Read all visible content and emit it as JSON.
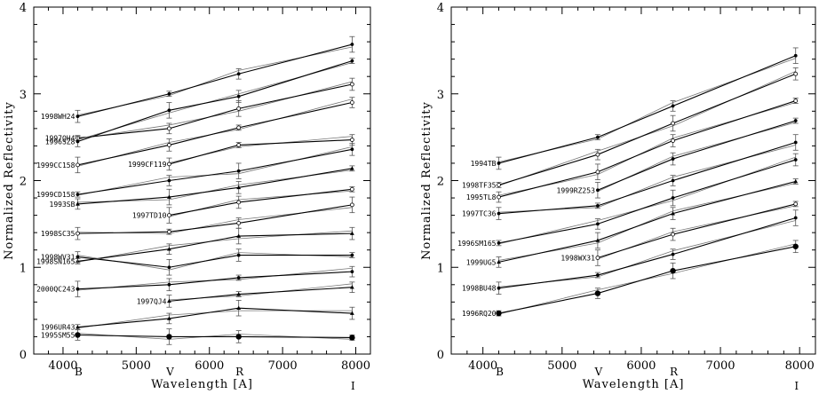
{
  "chart_data": [
    {
      "type": "line",
      "xlabel": "Wavelength [A]",
      "ylabel": "Normalized Reflectivity",
      "xlim": [
        3600,
        8200
      ],
      "ylim": [
        0,
        4
      ],
      "xticks": [
        4000,
        5000,
        6000,
        7000,
        8000
      ],
      "yticks": [
        0,
        1,
        2,
        3,
        4
      ],
      "bands": [
        {
          "label": "B",
          "x": 4200
        },
        {
          "label": "V",
          "x": 5450
        },
        {
          "label": "R",
          "x": 6400
        },
        {
          "label": "I",
          "x": 7950
        }
      ],
      "series": [
        {
          "name": "1998WH24",
          "marker": "dot",
          "x": [
            4200,
            5450,
            6400,
            7950
          ],
          "y": [
            2.74,
            3.0,
            3.23,
            3.57
          ]
        },
        {
          "name": "1997QH4",
          "marker": "open",
          "x": [
            4200,
            5450,
            6400,
            7950
          ],
          "y": [
            2.49,
            2.6,
            2.83,
            3.11
          ]
        },
        {
          "name": "1996SZ8",
          "marker": "dot",
          "x": [
            4200,
            5450,
            6400,
            7950
          ],
          "y": [
            2.45,
            2.81,
            2.97,
            3.38
          ]
        },
        {
          "name": "1999CC158",
          "marker": "open",
          "x": [
            4200,
            5450,
            6400,
            7950
          ],
          "y": [
            2.18,
            2.41,
            2.61,
            2.9
          ]
        },
        {
          "name": "1999CF119",
          "marker": "open",
          "x": [
            5450,
            6400,
            7950
          ],
          "y": [
            2.19,
            2.41,
            2.47
          ]
        },
        {
          "name": "1999CD158",
          "marker": "dot",
          "x": [
            4200,
            5450,
            6400,
            7950
          ],
          "y": [
            1.84,
            2.0,
            2.11,
            2.36
          ]
        },
        {
          "name": "1993SB",
          "marker": "tri",
          "x": [
            4200,
            5450,
            6400,
            7950
          ],
          "y": [
            1.73,
            1.81,
            1.92,
            2.14
          ]
        },
        {
          "name": "1997TD10",
          "marker": "open",
          "x": [
            5450,
            6400,
            7950
          ],
          "y": [
            1.6,
            1.75,
            1.9
          ]
        },
        {
          "name": "1998SC35",
          "marker": "open",
          "x": [
            4200,
            5450,
            6400,
            7950
          ],
          "y": [
            1.39,
            1.41,
            1.51,
            1.72
          ]
        },
        {
          "name": "1998SN165",
          "marker": "tri",
          "x": [
            4200,
            5450,
            6400,
            7950
          ],
          "y": [
            1.07,
            1.21,
            1.36,
            1.39
          ]
        },
        {
          "name": "1998WV31",
          "marker": "dot",
          "x": [
            4200,
            5450,
            6400,
            7950
          ],
          "y": [
            1.12,
            1.0,
            1.14,
            1.14
          ]
        },
        {
          "name": "2000QC243",
          "marker": "dot",
          "x": [
            4200,
            5450,
            6400,
            7950
          ],
          "y": [
            0.75,
            0.8,
            0.88,
            0.95
          ]
        },
        {
          "name": "1997QJ4",
          "marker": "tri",
          "x": [
            5450,
            6400,
            7950
          ],
          "y": [
            0.61,
            0.69,
            0.77
          ]
        },
        {
          "name": "1996UR43",
          "marker": "tri",
          "x": [
            4200,
            5450,
            6400,
            7950
          ],
          "y": [
            0.31,
            0.41,
            0.53,
            0.47
          ]
        },
        {
          "name": "1995SM55",
          "marker": "bigdot",
          "x": [
            4200,
            5450,
            6400,
            7950
          ],
          "y": [
            0.22,
            0.2,
            0.2,
            0.19
          ]
        }
      ]
    },
    {
      "type": "line",
      "xlabel": "Wavelength [A]",
      "ylabel": "Normalized Reflectivity",
      "xlim": [
        3600,
        8200
      ],
      "ylim": [
        0,
        4
      ],
      "xticks": [
        4000,
        5000,
        6000,
        7000,
        8000
      ],
      "yticks": [
        0,
        1,
        2,
        3,
        4
      ],
      "bands": [
        {
          "label": "B",
          "x": 4200
        },
        {
          "label": "V",
          "x": 5450
        },
        {
          "label": "R",
          "x": 6400
        },
        {
          "label": "I",
          "x": 7950
        }
      ],
      "series": [
        {
          "name": "1994TB",
          "marker": "dot",
          "x": [
            4200,
            5450,
            6400,
            7950
          ],
          "y": [
            2.2,
            2.5,
            2.86,
            3.44
          ]
        },
        {
          "name": "1998TF35",
          "marker": "open",
          "x": [
            4200,
            5450,
            6400,
            7950
          ],
          "y": [
            1.95,
            2.3,
            2.66,
            3.23
          ]
        },
        {
          "name": "1995TL8",
          "marker": "open",
          "x": [
            4200,
            5450,
            6400,
            7950
          ],
          "y": [
            1.81,
            2.1,
            2.46,
            2.92
          ]
        },
        {
          "name": "1999RZ253",
          "marker": "dot",
          "x": [
            5450,
            6400,
            7950
          ],
          "y": [
            1.89,
            2.25,
            2.69
          ]
        },
        {
          "name": "1997TC36",
          "marker": "dot",
          "x": [
            4200,
            5450,
            6400,
            7950
          ],
          "y": [
            1.62,
            1.71,
            2.0,
            2.44
          ]
        },
        {
          "name": "1996SM165",
          "marker": "dot",
          "x": [
            4200,
            5450,
            6400,
            7950
          ],
          "y": [
            1.28,
            1.5,
            1.8,
            2.24
          ]
        },
        {
          "name": "1999UG5",
          "marker": "tri",
          "x": [
            4200,
            5450,
            6400,
            7950
          ],
          "y": [
            1.06,
            1.31,
            1.62,
            1.99
          ]
        },
        {
          "name": "1998WX31",
          "marker": "open",
          "x": [
            5450,
            6400,
            7950
          ],
          "y": [
            1.11,
            1.38,
            1.73
          ]
        },
        {
          "name": "1998BU48",
          "marker": "dot",
          "x": [
            4200,
            5450,
            6400,
            7950
          ],
          "y": [
            0.76,
            0.91,
            1.15,
            1.57
          ]
        },
        {
          "name": "1996RQ20",
          "marker": "bigdot",
          "x": [
            4200,
            5450,
            6400,
            7950
          ],
          "y": [
            0.47,
            0.7,
            0.96,
            1.24
          ]
        }
      ]
    }
  ]
}
